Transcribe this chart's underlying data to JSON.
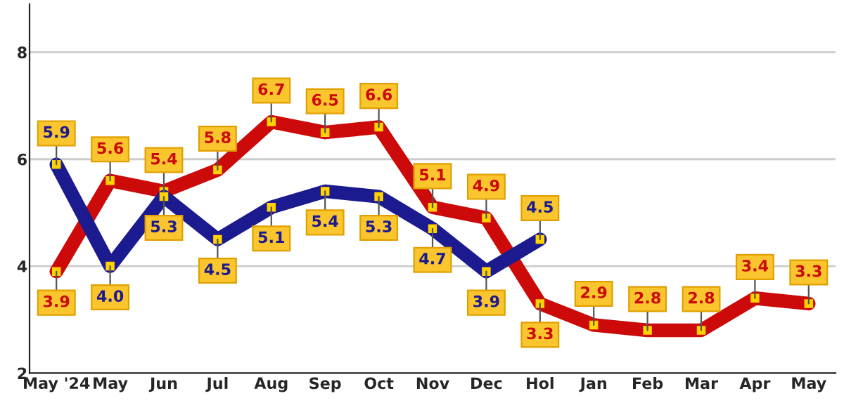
{
  "chart_data": {
    "type": "line",
    "categories": [
      "May '24",
      "May",
      "Jun",
      "Jul",
      "Aug",
      "Sep",
      "Oct",
      "Nov",
      "Dec",
      "Hol",
      "Jan",
      "Feb",
      "Mar",
      "Apr",
      "May"
    ],
    "series": [
      {
        "color": "#cc0a0a",
        "values": [
          3.9,
          5.6,
          5.4,
          5.8,
          6.7,
          6.5,
          6.6,
          5.1,
          4.9,
          3.3,
          2.9,
          2.8,
          2.8,
          3.4,
          3.3
        ],
        "value_labels": [
          "3.9",
          "5.6",
          "5.4",
          "5.8",
          "6.7",
          "6.5",
          "6.6",
          "5.1",
          "4.9",
          "3.3",
          "2.9",
          "2.8",
          "2.8",
          "3.4",
          "3.3"
        ]
      },
      {
        "color": "#1c1a8f",
        "values": [
          5.9,
          4.0,
          5.3,
          4.5,
          5.1,
          5.4,
          5.3,
          4.7,
          3.9,
          4.5,
          null,
          null,
          null,
          null,
          null
        ],
        "value_labels": [
          "5.9",
          "4.0",
          "5.3",
          "4.5",
          "5.1",
          "5.4",
          "5.3",
          "4.7",
          "3.9",
          "4.5",
          null,
          null,
          null,
          null,
          null
        ]
      }
    ],
    "ylim": [
      2,
      8.9
    ],
    "yticks": [
      2,
      4,
      6,
      8
    ],
    "grid": "y",
    "marker": "square",
    "line_style": "solid",
    "legend": false
  }
}
